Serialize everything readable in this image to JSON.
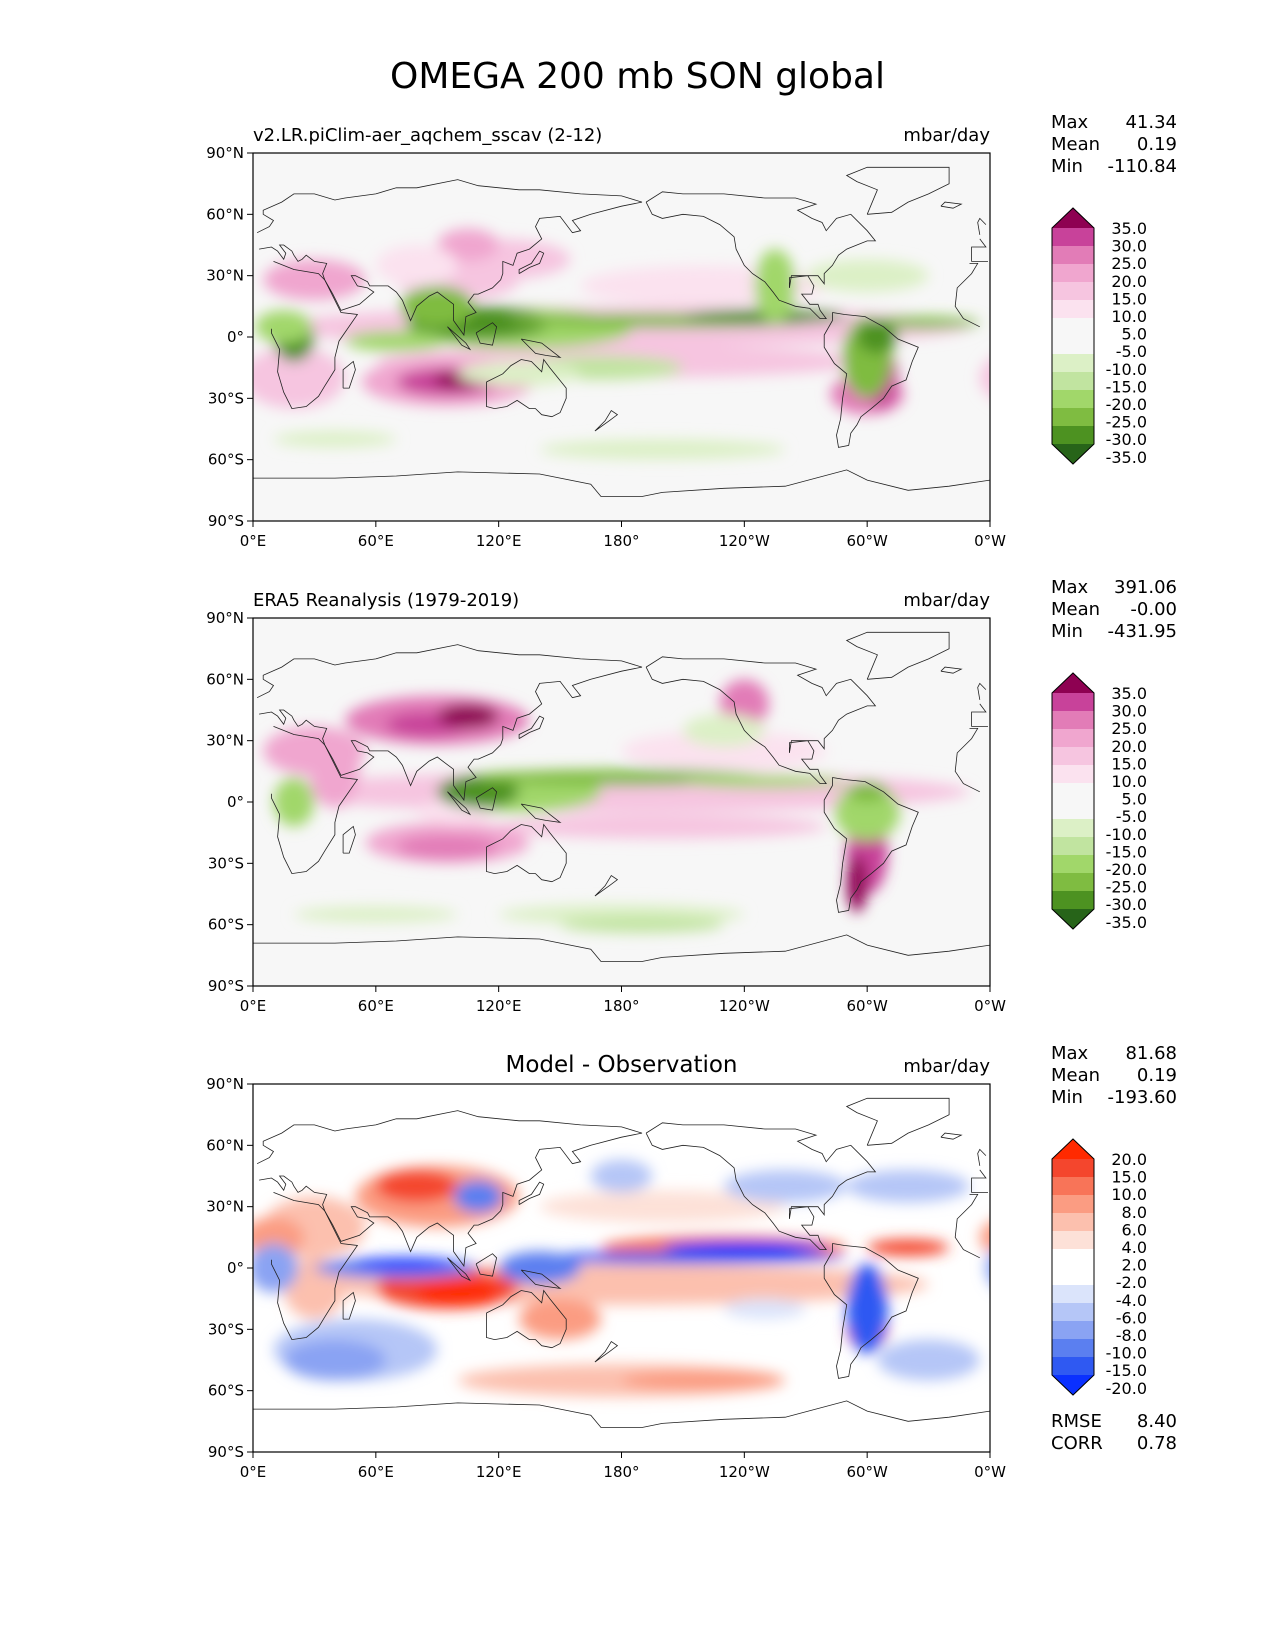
{
  "title": "OMEGA 200 mb SON global",
  "axes": {
    "lat_ticks": [
      "90°N",
      "60°N",
      "30°N",
      "0°",
      "30°S",
      "60°S",
      "90°S"
    ],
    "lon_ticks": [
      "0°E",
      "60°E",
      "120°E",
      "180°",
      "120°W",
      "60°W",
      "0°W"
    ]
  },
  "stats_labels": {
    "max": "Max",
    "mean": "Mean",
    "min": "Min",
    "rmse": "RMSE",
    "corr": "CORR"
  },
  "colors": {
    "piyg": [
      "#276419",
      "#4d9221",
      "#7fbc41",
      "#a1d76a",
      "#c1e4a0",
      "#dcf0c6",
      "#f7f7f7",
      "#f7f7f7",
      "#fbe2ef",
      "#f6c5e0",
      "#f0a6cf",
      "#e27cb7",
      "#c8429a",
      "#8e0152"
    ],
    "bwr": [
      "#0a30ff",
      "#2f59f2",
      "#5b7ff0",
      "#8aa3f3",
      "#b5c6f7",
      "#dbe4fb",
      "#ffffff",
      "#ffffff",
      "#fde1d8",
      "#fcc0ae",
      "#fb9c82",
      "#f87458",
      "#f4462d",
      "#ff2a00"
    ],
    "coast": "#222222"
  },
  "chart_data": [
    {
      "type": "heatmap",
      "title": "v2.LR.piClim-aer_aqchem_sscav (2-12)",
      "units": "mbar/day",
      "stats": {
        "max": "41.34",
        "mean": "0.19",
        "min": "-110.84"
      },
      "colorbar": {
        "levels": [
          -35,
          -30,
          -25,
          -20,
          -15,
          -10,
          -5,
          5,
          10,
          15,
          20,
          25,
          30,
          35
        ],
        "tick_labels": [
          "35.0",
          "30.0",
          "25.0",
          "20.0",
          "15.0",
          "10.0",
          "5.0",
          "-5.0",
          "-10.0",
          "-15.0",
          "-20.0",
          "-25.0",
          "-30.0",
          "-35.0"
        ],
        "colormap": "PiYG_r"
      }
    },
    {
      "type": "heatmap",
      "title": "ERA5 Reanalysis (1979-2019)",
      "units": "mbar/day",
      "stats": {
        "max": "391.06",
        "mean": "-0.00",
        "min": "-431.95"
      },
      "colorbar": {
        "levels": [
          -35,
          -30,
          -25,
          -20,
          -15,
          -10,
          -5,
          5,
          10,
          15,
          20,
          25,
          30,
          35
        ],
        "tick_labels": [
          "35.0",
          "30.0",
          "25.0",
          "20.0",
          "15.0",
          "10.0",
          "5.0",
          "-5.0",
          "-10.0",
          "-15.0",
          "-20.0",
          "-25.0",
          "-30.0",
          "-35.0"
        ],
        "colormap": "PiYG_r"
      }
    },
    {
      "type": "heatmap",
      "title": "Model - Observation",
      "units": "mbar/day",
      "stats": {
        "max": "81.68",
        "mean": "0.19",
        "min": "-193.60",
        "rmse": "8.40",
        "corr": "0.78"
      },
      "colorbar": {
        "levels": [
          -20,
          -15,
          -10,
          -8,
          -6,
          -4,
          -2,
          2,
          4,
          6,
          8,
          10,
          15,
          20
        ],
        "tick_labels": [
          "20.0",
          "15.0",
          "10.0",
          "8.0",
          "6.0",
          "4.0",
          "2.0",
          "-2.0",
          "-4.0",
          "-6.0",
          "-8.0",
          "-10.0",
          "-15.0",
          "-20.0"
        ],
        "colormap": "bwr"
      }
    }
  ]
}
